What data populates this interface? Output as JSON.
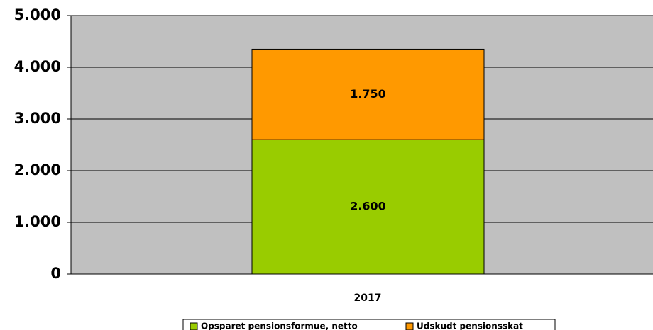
{
  "chart_data": {
    "type": "stacked_bar",
    "categories": [
      "2017"
    ],
    "series": [
      {
        "name": "Opsparet pensionsformue, netto",
        "color": "#99cc00",
        "values": [
          2600
        ],
        "value_labels": [
          "2.600"
        ]
      },
      {
        "name": "Udskudt pensionsskat",
        "color": "#ff9900",
        "values": [
          1750
        ],
        "value_labels": [
          "1.750"
        ]
      }
    ],
    "ylim": [
      0,
      5000
    ],
    "yticks": [
      0,
      {
        "value": 1000,
        "label": "1.000"
      },
      {
        "value": 2000,
        "label": "2.000"
      },
      {
        "value": 3000,
        "label": "3.000"
      },
      {
        "value": 4000,
        "label": "4.000"
      },
      {
        "value": 5000,
        "label": "5.000"
      }
    ],
    "grid": true,
    "legend": "bottom"
  }
}
